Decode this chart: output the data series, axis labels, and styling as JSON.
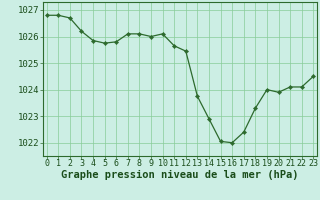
{
  "x": [
    0,
    1,
    2,
    3,
    4,
    5,
    6,
    7,
    8,
    9,
    10,
    11,
    12,
    13,
    14,
    15,
    16,
    17,
    18,
    19,
    20,
    21,
    22,
    23
  ],
  "y": [
    1026.8,
    1026.8,
    1026.7,
    1026.2,
    1025.85,
    1025.75,
    1025.8,
    1026.1,
    1026.1,
    1026.0,
    1026.1,
    1025.65,
    1025.45,
    1023.75,
    1022.9,
    1022.05,
    1022.0,
    1022.4,
    1023.3,
    1024.0,
    1023.9,
    1024.1,
    1024.1,
    1024.5
  ],
  "line_color": "#2d6a2d",
  "marker": "D",
  "marker_size": 2.2,
  "bg_color": "#cceee4",
  "grid_color": "#88cc99",
  "xlabel": "Graphe pression niveau de la mer (hPa)",
  "xlabel_color": "#1a4d1a",
  "xlabel_fontsize": 7.5,
  "tick_color": "#1a4d1a",
  "ytick_fontsize": 6.5,
  "xtick_fontsize": 6.0,
  "ylim": [
    1021.5,
    1027.3
  ],
  "yticks": [
    1022,
    1023,
    1024,
    1025,
    1026,
    1027
  ],
  "xticks": [
    0,
    1,
    2,
    3,
    4,
    5,
    6,
    7,
    8,
    9,
    10,
    11,
    12,
    13,
    14,
    15,
    16,
    17,
    18,
    19,
    20,
    21,
    22,
    23
  ],
  "spine_color": "#2d6a2d"
}
